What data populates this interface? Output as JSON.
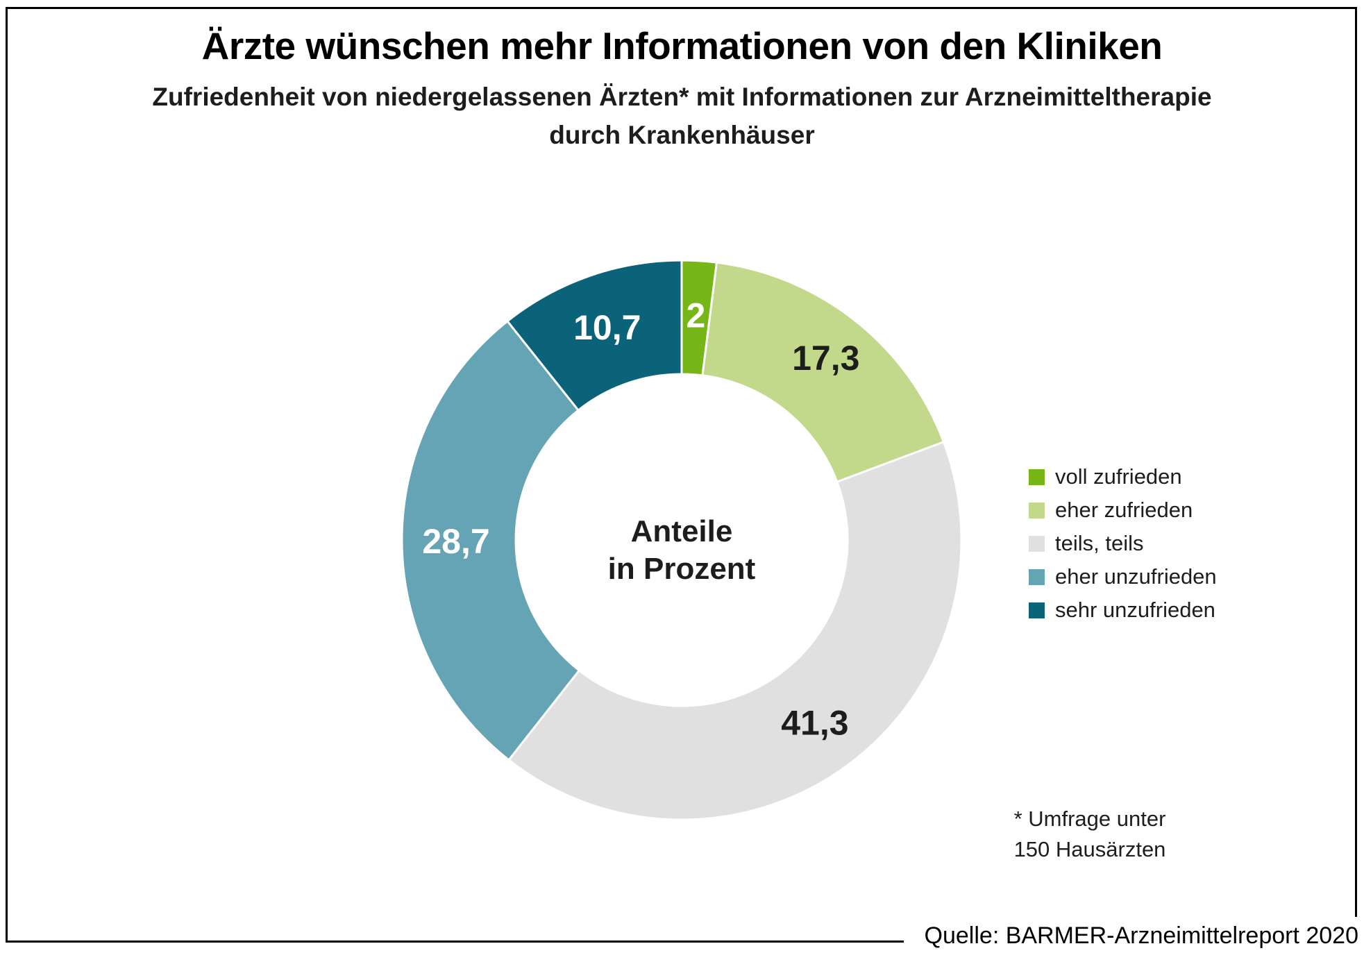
{
  "header": {
    "title": "Ärzte wünschen mehr Informationen von den Kliniken",
    "subtitle_line1": "Zufriedenheit von niedergelassenen Ärzten* mit Informationen zur Arzneimitteltherapie",
    "subtitle_line2": "durch Krankenhäuser"
  },
  "chart_data": {
    "type": "pie",
    "variant": "donut",
    "start_angle_deg": 0,
    "direction": "clockwise",
    "legend_position": "right",
    "center_label_line1": "Anteile",
    "center_label_line2": "in Prozent",
    "categories": [
      "voll zufrieden",
      "eher zufrieden",
      "teils, teils",
      "eher unzufrieden",
      "sehr unzufrieden"
    ],
    "values": [
      2,
      17.3,
      41.3,
      28.7,
      10.7
    ],
    "series": [
      {
        "label": "voll zufrieden",
        "value": 2,
        "display_value": "2",
        "color": "#77b617",
        "value_label_color": "#ffffff"
      },
      {
        "label": "eher zufrieden",
        "value": 17.3,
        "display_value": "17,3",
        "color": "#c2d98b",
        "value_label_color": "#1d1d1b",
        "label_r": 335
      },
      {
        "label": "teils, teils",
        "value": 41.3,
        "display_value": "41,3",
        "color": "#e0e0e1",
        "value_label_color": "#1d1d1b"
      },
      {
        "label": "eher unzufrieden",
        "value": 28.7,
        "display_value": "28,7",
        "color": "#64a4b4",
        "value_label_color": "#ffffff"
      },
      {
        "label": "sehr unzufrieden",
        "value": 10.7,
        "display_value": "10,7",
        "color": "#0a6379",
        "value_label_color": "#ffffff"
      }
    ]
  },
  "footnote": {
    "line1": "* Umfrage unter",
    "line2": "150 Hausärzten"
  },
  "source": {
    "text": "Quelle: BARMER-Arzneimittelreport 2020"
  }
}
